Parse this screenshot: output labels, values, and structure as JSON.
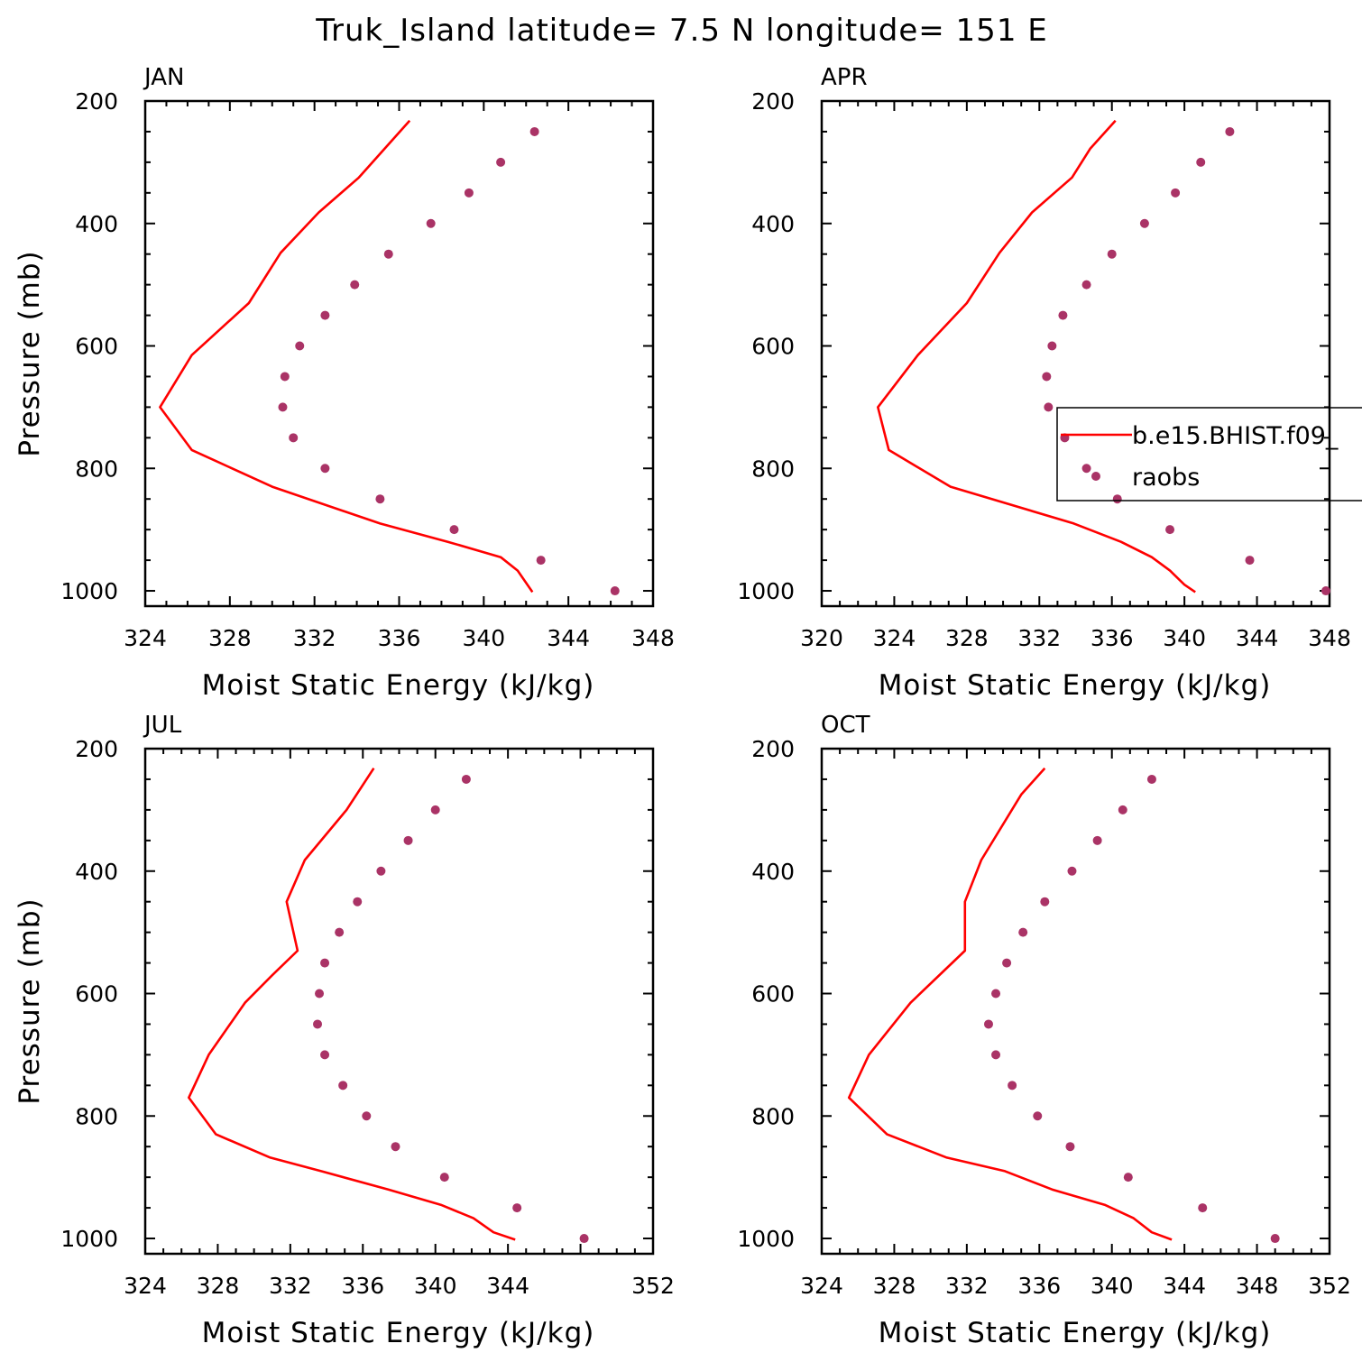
{
  "title": "Truk_Island  latitude= 7.5 N longitude= 151 E",
  "legend": {
    "entries": [
      {
        "label": "b.e15.BHIST.f09_",
        "type": "line",
        "color": "#ff0000"
      },
      {
        "label": "raobs",
        "type": "marker",
        "color": "#aa3366"
      }
    ]
  },
  "chart_data": [
    {
      "type": "line",
      "panel": "JAN",
      "xlabel": "Moist Static Energy (kJ/kg)",
      "ylabel": "Pressure (mb)",
      "xlim": [
        324,
        348
      ],
      "xticks": [
        324,
        328,
        332,
        336,
        340,
        344,
        348
      ],
      "ylim": [
        1025,
        200
      ],
      "yticks": [
        200,
        400,
        600,
        800,
        1000
      ],
      "series": [
        {
          "name": "b.e15.BHIST.f09_",
          "style": "line",
          "color": "#ff0000",
          "x": [
            336.5,
            334.1,
            332.2,
            330.4,
            328.9,
            326.2,
            324.7,
            326.2,
            330.0,
            335.1,
            338.3,
            340.8,
            341.6,
            342.3
          ],
          "y": [
            232,
            325,
            382,
            448,
            530,
            615,
            700,
            770,
            830,
            890,
            920,
            945,
            967,
            1002
          ]
        },
        {
          "name": "raobs",
          "style": "marker",
          "color": "#aa3366",
          "x": [
            342.4,
            340.8,
            339.3,
            337.5,
            335.5,
            333.9,
            332.5,
            331.3,
            330.6,
            330.5,
            331.0,
            332.5,
            335.1,
            338.6,
            342.7,
            346.2
          ],
          "y": [
            250,
            300,
            350,
            400,
            450,
            500,
            550,
            600,
            650,
            700,
            750,
            800,
            850,
            900,
            950,
            1000
          ]
        }
      ]
    },
    {
      "type": "line",
      "panel": "APR",
      "xlabel": "Moist Static Energy (kJ/kg)",
      "ylabel": "",
      "xlim": [
        320,
        348
      ],
      "xticks": [
        320,
        324,
        328,
        332,
        336,
        340,
        344,
        348
      ],
      "ylim": [
        1025,
        200
      ],
      "yticks": [
        200,
        400,
        600,
        800,
        1000
      ],
      "series": [
        {
          "name": "b.e15.BHIST.f09_",
          "style": "line",
          "color": "#ff0000",
          "x": [
            336.2,
            334.8,
            333.8,
            331.6,
            329.8,
            328.0,
            325.3,
            323.1,
            323.7,
            327.1,
            333.9,
            336.5,
            338.2,
            339.2,
            340.0,
            340.6
          ],
          "y": [
            232,
            278,
            325,
            382,
            448,
            530,
            615,
            700,
            770,
            830,
            890,
            920,
            945,
            967,
            990,
            1002
          ]
        },
        {
          "name": "raobs",
          "style": "marker",
          "color": "#aa3366",
          "x": [
            342.5,
            340.9,
            339.5,
            337.8,
            336.0,
            334.6,
            333.3,
            332.7,
            332.4,
            332.5,
            333.4,
            334.6,
            336.3,
            339.2,
            343.6,
            347.8
          ],
          "y": [
            250,
            300,
            350,
            400,
            450,
            500,
            550,
            600,
            650,
            700,
            750,
            800,
            850,
            900,
            950,
            1000
          ]
        }
      ]
    },
    {
      "type": "line",
      "panel": "JUL",
      "xlabel": "Moist Static Energy (kJ/kg)",
      "ylabel": "Pressure (mb)",
      "xlim": [
        324,
        352
      ],
      "xticks": [
        324,
        328,
        332,
        336,
        340,
        344,
        352
      ],
      "ylim": [
        1025,
        200
      ],
      "yticks": [
        200,
        400,
        600,
        800,
        1000
      ],
      "series": [
        {
          "name": "b.e15.BHIST.f09_",
          "style": "line",
          "color": "#ff0000",
          "x": [
            336.6,
            335.1,
            332.8,
            331.8,
            332.4,
            331.0,
            329.5,
            327.5,
            326.4,
            327.9,
            330.9,
            333.7,
            337.4,
            340.3,
            342.1,
            343.2,
            344.4
          ],
          "y": [
            232,
            300,
            382,
            450,
            530,
            570,
            615,
            700,
            770,
            830,
            868,
            890,
            920,
            945,
            967,
            990,
            1002
          ]
        },
        {
          "name": "raobs",
          "style": "marker",
          "color": "#aa3366",
          "x": [
            341.7,
            340.0,
            338.5,
            337.0,
            335.7,
            334.7,
            333.9,
            333.6,
            333.5,
            333.9,
            334.9,
            336.2,
            337.8,
            340.5,
            344.5,
            348.2
          ],
          "y": [
            250,
            300,
            350,
            400,
            450,
            500,
            550,
            600,
            650,
            700,
            750,
            800,
            850,
            900,
            950,
            1000
          ]
        }
      ]
    },
    {
      "type": "line",
      "panel": "OCT",
      "xlabel": "Moist Static Energy (kJ/kg)",
      "ylabel": "",
      "xlim": [
        324,
        352
      ],
      "xticks": [
        324,
        328,
        332,
        336,
        340,
        344,
        348,
        352
      ],
      "ylim": [
        1025,
        200
      ],
      "yticks": [
        200,
        400,
        600,
        800,
        1000
      ],
      "series": [
        {
          "name": "b.e15.BHIST.f09_",
          "style": "line",
          "color": "#ff0000",
          "x": [
            336.3,
            335.0,
            332.8,
            331.9,
            331.9,
            328.9,
            326.6,
            325.5,
            327.6,
            330.9,
            334.1,
            336.7,
            339.6,
            341.2,
            342.2,
            343.3
          ],
          "y": [
            232,
            275,
            382,
            450,
            530,
            615,
            700,
            770,
            830,
            868,
            890,
            920,
            945,
            967,
            990,
            1002
          ]
        },
        {
          "name": "raobs",
          "style": "marker",
          "color": "#aa3366",
          "x": [
            342.2,
            340.6,
            339.2,
            337.8,
            336.3,
            335.1,
            334.2,
            333.6,
            333.2,
            333.6,
            334.5,
            335.9,
            337.7,
            340.9,
            345.0,
            349.0
          ],
          "y": [
            250,
            300,
            350,
            400,
            450,
            500,
            550,
            600,
            650,
            700,
            750,
            800,
            850,
            900,
            950,
            1000
          ]
        }
      ]
    }
  ]
}
